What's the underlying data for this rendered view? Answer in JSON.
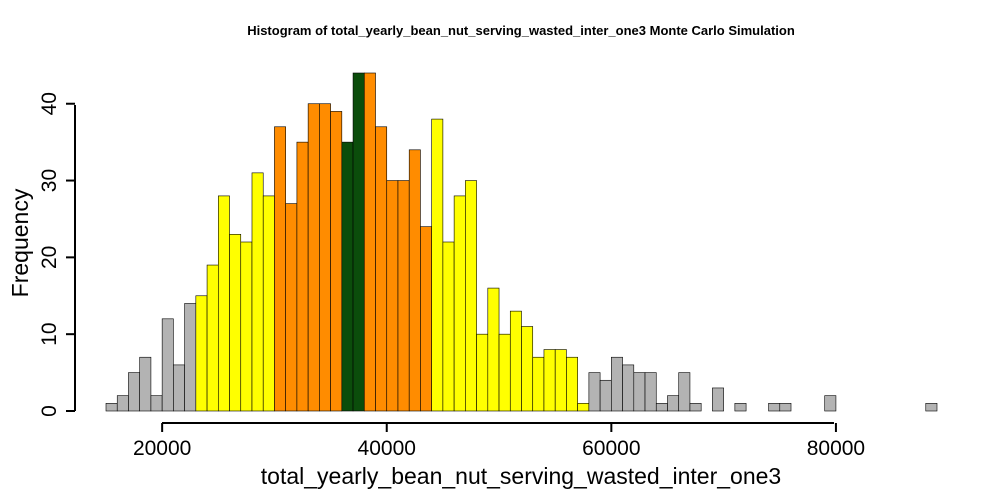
{
  "chart_data": {
    "type": "bar",
    "title": "Histogram of  total_yearly_bean_nut_serving_wasted_inter_one3  Monte Carlo Simulation",
    "xlabel": "total_yearly_bean_nut_serving_wasted_inter_one3",
    "ylabel": "Frequency",
    "bin_start": 15000,
    "bin_width": 1000,
    "xlim": [
      15000,
      89000
    ],
    "ylim": [
      0,
      44
    ],
    "x_ticks": [
      20000,
      40000,
      60000,
      80000
    ],
    "x_tick_labels": [
      "20000",
      "40000",
      "60000",
      "80000"
    ],
    "y_ticks": [
      0,
      10,
      20,
      30,
      40
    ],
    "y_tick_labels": [
      "0",
      "10",
      "20",
      "30",
      "40"
    ],
    "grid": false,
    "legend": "none",
    "values": [
      1,
      2,
      5,
      7,
      2,
      12,
      6,
      14,
      15,
      19,
      28,
      23,
      22,
      31,
      28,
      37,
      27,
      35,
      40,
      40,
      39,
      35,
      44,
      44,
      37,
      30,
      30,
      34,
      24,
      38,
      22,
      28,
      30,
      10,
      16,
      10,
      13,
      11,
      7,
      8,
      8,
      7,
      1,
      5,
      4,
      7,
      6,
      5,
      5,
      1,
      2,
      5,
      1,
      0,
      3,
      0,
      1,
      0,
      0,
      1,
      1,
      0,
      0,
      0,
      2,
      0,
      0,
      0,
      0,
      0,
      0,
      0,
      0,
      1
    ],
    "colors": [
      "#b3b3b3",
      "#b3b3b3",
      "#b3b3b3",
      "#b3b3b3",
      "#b3b3b3",
      "#b3b3b3",
      "#b3b3b3",
      "#b3b3b3",
      "#ffff00",
      "#ffff00",
      "#ffff00",
      "#ffff00",
      "#ffff00",
      "#ffff00",
      "#ffff00",
      "#ff8c00",
      "#ff8c00",
      "#ff8c00",
      "#ff8c00",
      "#ff8c00",
      "#ff8c00",
      "#0b4d0b",
      "#0b4d0b",
      "#ff8c00",
      "#ff8c00",
      "#ff8c00",
      "#ff8c00",
      "#ff8c00",
      "#ff8c00",
      "#ffff00",
      "#ffff00",
      "#ffff00",
      "#ffff00",
      "#ffff00",
      "#ffff00",
      "#ffff00",
      "#ffff00",
      "#ffff00",
      "#ffff00",
      "#ffff00",
      "#ffff00",
      "#ffff00",
      "#ffff00",
      "#b3b3b3",
      "#b3b3b3",
      "#b3b3b3",
      "#b3b3b3",
      "#b3b3b3",
      "#b3b3b3",
      "#b3b3b3",
      "#b3b3b3",
      "#b3b3b3",
      "#b3b3b3",
      "#b3b3b3",
      "#b3b3b3",
      "#b3b3b3",
      "#b3b3b3",
      "#b3b3b3",
      "#b3b3b3",
      "#b3b3b3",
      "#b3b3b3",
      "#b3b3b3",
      "#b3b3b3",
      "#b3b3b3",
      "#b3b3b3",
      "#b3b3b3",
      "#b3b3b3",
      "#b3b3b3",
      "#b3b3b3",
      "#b3b3b3",
      "#b3b3b3",
      "#b3b3b3",
      "#b3b3b3",
      "#b3b3b3"
    ]
  }
}
